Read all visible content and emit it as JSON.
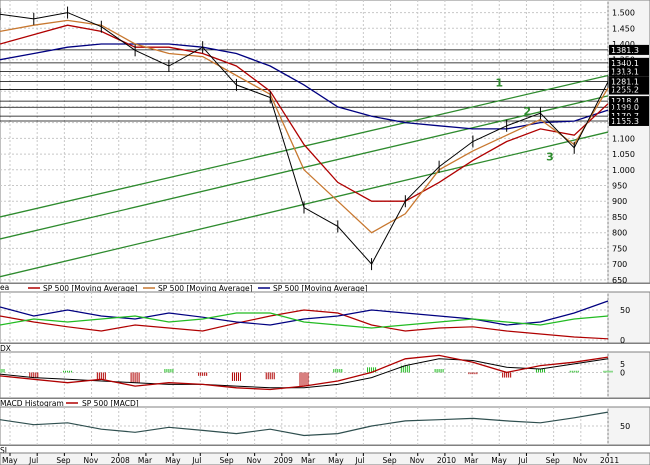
{
  "chart_data": [
    {
      "type": "line",
      "ylim": [
        640,
        1540
      ],
      "y_ticks": [
        650,
        700,
        750,
        800,
        850,
        900,
        950,
        1000,
        1050,
        1100,
        1150,
        1200,
        1250,
        1300,
        1350,
        1400,
        1450,
        1500
      ],
      "y_tick_labels": [
        "650",
        "700",
        "750",
        "800",
        "850",
        "900",
        "950",
        "1.000",
        "1.050",
        "1.100",
        "1.150",
        "1.200",
        "1.250",
        "1.300",
        "1.350",
        "1.400",
        "1.450",
        "1.500"
      ],
      "x_tick_labels": [
        "May",
        "Jul",
        "Sep",
        "Nov",
        "2008",
        "Mar",
        "May",
        "Jul",
        "Sep",
        "Nov",
        "2009",
        "Mar",
        "May",
        "Jul",
        "Sep",
        "Nov",
        "2010",
        "Mar",
        "May",
        "Jul",
        "Sep",
        "Nov",
        "2011"
      ],
      "price_x": [
        0,
        3,
        6,
        9,
        12,
        15,
        18,
        21,
        24,
        27,
        30,
        33,
        36,
        39,
        42,
        45,
        48,
        51,
        54
      ],
      "price": [
        1495,
        1480,
        1500,
        1455,
        1380,
        1330,
        1390,
        1270,
        1230,
        880,
        820,
        700,
        900,
        1010,
        1090,
        1140,
        1180,
        1070,
        1280
      ],
      "ma_short": [
        1440,
        1460,
        1475,
        1460,
        1400,
        1370,
        1360,
        1300,
        1240,
        1000,
        900,
        800,
        860,
        1000,
        1060,
        1110,
        1160,
        1080,
        1260
      ],
      "ma_mid": [
        1400,
        1430,
        1460,
        1440,
        1390,
        1390,
        1370,
        1330,
        1250,
        1080,
        960,
        900,
        900,
        960,
        1030,
        1090,
        1130,
        1110,
        1210
      ],
      "ma_long": [
        1350,
        1370,
        1390,
        1400,
        1400,
        1400,
        1390,
        1370,
        1330,
        1270,
        1200,
        1170,
        1150,
        1140,
        1130,
        1130,
        1150,
        1155,
        1190
      ],
      "levels": [
        1381.3,
        1340.1,
        1313.1,
        1281.1,
        1255.2,
        1218.4,
        1199.0,
        1170.7,
        1155.3
      ],
      "level_labels": [
        "1381.3",
        "1340.1",
        "1313.1",
        "1281.1",
        "1255.2",
        "1218.4",
        "1199.0",
        "1170.7",
        "1155.3"
      ],
      "channel_line_1": {
        "x": [
          0,
          54
        ],
        "y": [
          850,
          1300
        ]
      },
      "channel_line_2": {
        "x": [
          0,
          54
        ],
        "y": [
          780,
          1235
        ]
      },
      "channel_line_3": {
        "x": [
          0,
          54
        ],
        "y": [
          660,
          1120
        ]
      },
      "channel_labels": [
        "1",
        "2",
        "3"
      ],
      "legend": [
        "SP 500 [Moving Average]",
        "SP 500 [Moving Average]",
        "SP 500 [Moving Average]"
      ],
      "legend_prefix": "ea",
      "colors": {
        "price": "#000000",
        "ma_short": "#c87830",
        "ma_mid": "#b00000",
        "ma_long": "#000080",
        "channel": "#2e8b2e",
        "level": "#000000"
      }
    },
    {
      "type": "line",
      "legend_prefix": "DX",
      "ylim": [
        -5,
        80
      ],
      "y_tick_labels": [
        "50",
        "0"
      ],
      "x": [
        0,
        3,
        6,
        9,
        12,
        15,
        18,
        21,
        24,
        27,
        30,
        33,
        36,
        39,
        42,
        45,
        48,
        51,
        54
      ],
      "adx": [
        40,
        30,
        22,
        15,
        25,
        20,
        15,
        28,
        40,
        50,
        45,
        25,
        15,
        20,
        22,
        15,
        10,
        5,
        2
      ],
      "pdi": [
        55,
        40,
        50,
        40,
        35,
        45,
        38,
        30,
        25,
        35,
        40,
        50,
        45,
        40,
        35,
        25,
        30,
        45,
        65
      ],
      "mdi": [
        25,
        35,
        30,
        35,
        40,
        30,
        35,
        45,
        45,
        30,
        25,
        20,
        25,
        30,
        35,
        30,
        25,
        35,
        40
      ],
      "colors": {
        "adx": "#b00000",
        "pdi": "#000080",
        "mdi": "#22bb22"
      }
    },
    {
      "type": "bar",
      "legend": [
        "MACD Histogram",
        "SP 500 [MACD]"
      ],
      "ylim": [
        -15,
        12
      ],
      "y_tick_labels": [
        "5",
        "0"
      ],
      "x": [
        0,
        3,
        6,
        9,
        12,
        15,
        18,
        21,
        24,
        27,
        30,
        33,
        36,
        39,
        42,
        45,
        48,
        51,
        54
      ],
      "histogram": [
        2,
        -3,
        1,
        -4,
        -6,
        2,
        -2,
        -5,
        -4,
        -8,
        2,
        3,
        4,
        2,
        -1,
        -3,
        2,
        1,
        1
      ],
      "macd": [
        -2,
        -4,
        -6,
        -4,
        -8,
        -6,
        -7,
        -9,
        -10,
        -8,
        -5,
        0,
        8,
        10,
        6,
        0,
        4,
        6,
        9
      ],
      "signal": [
        -1,
        -3,
        -4,
        -5,
        -6,
        -7,
        -7,
        -8,
        -9,
        -9,
        -7,
        -3,
        4,
        8,
        7,
        3,
        2,
        5,
        8
      ],
      "colors": {
        "macd": "#b00000",
        "signal": "#000000",
        "hist_pos": "#22bb22",
        "hist_neg": "#b00000"
      }
    },
    {
      "type": "line",
      "legend_prefix": "SI",
      "ylim": [
        20,
        80
      ],
      "y_tick_labels": [
        "50"
      ],
      "x": [
        0,
        3,
        6,
        9,
        12,
        15,
        18,
        21,
        24,
        27,
        30,
        33,
        36,
        39,
        42,
        45,
        48,
        51,
        54
      ],
      "values": [
        60,
        52,
        55,
        45,
        40,
        48,
        43,
        38,
        45,
        35,
        38,
        50,
        58,
        60,
        62,
        58,
        55,
        63,
        72
      ],
      "colors": {
        "line": "#2f4f4f"
      }
    }
  ]
}
